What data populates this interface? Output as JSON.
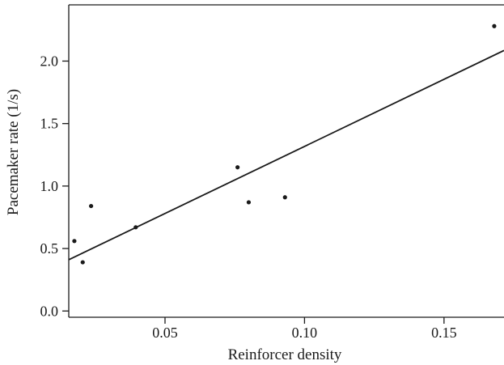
{
  "chart_data": {
    "type": "scatter",
    "xlabel": "Reinforcer density",
    "ylabel": "Pacemaker rate (1/s)",
    "xlim": [
      0.0155,
      0.1715
    ],
    "ylim": [
      -0.05,
      2.45
    ],
    "x_ticks": [
      {
        "value": 0.05,
        "label": "0.05"
      },
      {
        "value": 0.1,
        "label": "0.10"
      },
      {
        "value": 0.15,
        "label": "0.15"
      }
    ],
    "y_ticks": [
      {
        "value": 0.0,
        "label": "0.0"
      },
      {
        "value": 0.5,
        "label": "0.5"
      },
      {
        "value": 1.0,
        "label": "1.0"
      },
      {
        "value": 1.5,
        "label": "1.5"
      },
      {
        "value": 2.0,
        "label": "2.0"
      }
    ],
    "points": [
      {
        "x": 0.0175,
        "y": 0.56
      },
      {
        "x": 0.0205,
        "y": 0.39
      },
      {
        "x": 0.0235,
        "y": 0.84
      },
      {
        "x": 0.0395,
        "y": 0.67
      },
      {
        "x": 0.076,
        "y": 1.15
      },
      {
        "x": 0.08,
        "y": 0.87
      },
      {
        "x": 0.093,
        "y": 0.91
      },
      {
        "x": 0.168,
        "y": 2.28
      }
    ],
    "fit_line": {
      "x": [
        0.0155,
        0.1715
      ],
      "y": [
        0.41,
        2.085
      ]
    },
    "grid": false,
    "legend": "none",
    "colors": {
      "marks": "#1a1a1a",
      "axes": "#1a1a1a",
      "background": "#ffffff"
    }
  }
}
